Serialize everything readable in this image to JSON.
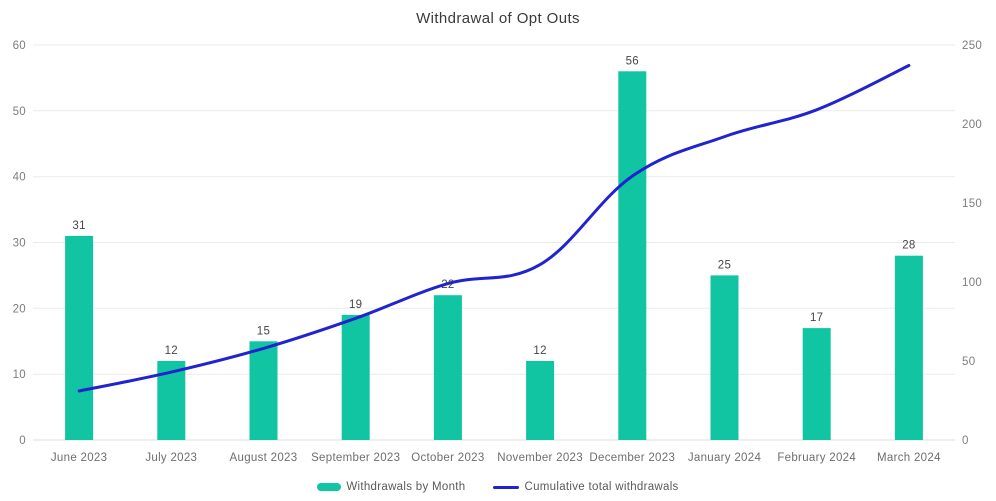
{
  "title": "Withdrawal of Opt Outs",
  "legend": {
    "items": [
      {
        "label": "Withdrawals by Month",
        "swatch": "bar",
        "color": "#11c5a3"
      },
      {
        "label": "Cumulative total withdrawals",
        "swatch": "line",
        "color": "#2024cf"
      }
    ]
  },
  "colors": {
    "bar": "#11c5a3",
    "line": "#2024cf",
    "gridline": "#ebebeb",
    "baseline": "#dedede",
    "tick_text": "#7d7d7d",
    "category_text": "#6e6e6e",
    "data_label_text": "#474747",
    "title_text": "#3a3a3a",
    "background": "#ffffff"
  },
  "chart_data": {
    "type": "bar",
    "title": "Withdrawal of Opt Outs",
    "xlabel": "",
    "ylabel_left": "",
    "ylabel_right": "",
    "grid": "horizontal",
    "legend_position": "bottom",
    "categories": [
      "June 2023",
      "July 2023",
      "August 2023",
      "September 2023",
      "October 2023",
      "November 2023",
      "December 2023",
      "January 2024",
      "February 2024",
      "March 2024"
    ],
    "series": [
      {
        "name": "Withdrawals by Month",
        "type": "bar",
        "axis": "left",
        "color": "#11c5a3",
        "data_labels": true,
        "values": [
          31,
          12,
          15,
          19,
          22,
          12,
          56,
          25,
          17,
          28
        ]
      },
      {
        "name": "Cumulative total withdrawals",
        "type": "line",
        "axis": "right",
        "color": "#2024cf",
        "data_labels": false,
        "values": [
          31,
          43,
          58,
          77,
          99,
          111,
          167,
          192,
          209,
          237
        ]
      }
    ],
    "left_axis": {
      "min": 0,
      "max": 60,
      "ticks": [
        0,
        10,
        20,
        30,
        40,
        50,
        60
      ]
    },
    "right_axis": {
      "min": 0,
      "max": 250,
      "ticks": [
        0,
        50,
        100,
        150,
        200,
        250
      ]
    }
  }
}
